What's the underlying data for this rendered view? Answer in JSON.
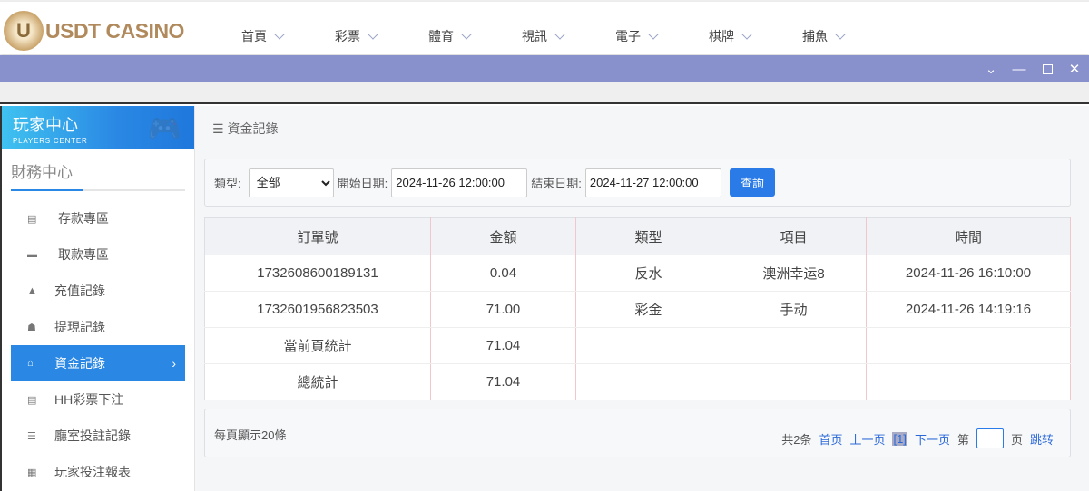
{
  "logo": {
    "text": "USDT CASINO"
  },
  "nav": [
    "首頁",
    "彩票",
    "體育",
    "視訊",
    "電子",
    "棋牌",
    "捕魚"
  ],
  "window": {
    "controls": [
      "chevron-down",
      "minimize",
      "maximize",
      "close"
    ]
  },
  "sidebar": {
    "title": "玩家中心",
    "subtitle": "PLAYERS CENTER",
    "section": "財務中心",
    "items": [
      {
        "label": "存款專區"
      },
      {
        "label": "取款專區"
      },
      {
        "label": "充值記錄"
      },
      {
        "label": "提現記錄"
      },
      {
        "label": "資金記錄",
        "active": true
      },
      {
        "label": "HH彩票下注"
      },
      {
        "label": "廳室投註記錄"
      },
      {
        "label": "玩家投注報表"
      }
    ]
  },
  "breadcrumb": "資金記錄",
  "filter": {
    "type_label": "類型:",
    "type_value": "全部",
    "start_label": "開始日期:",
    "start_value": "2024-11-26 12:00:00",
    "end_label": "結束日期:",
    "end_value": "2024-11-27 12:00:00",
    "query": "查詢"
  },
  "table": {
    "headers": [
      "訂單號",
      "金額",
      "類型",
      "項目",
      "時間"
    ],
    "rows": [
      [
        "1732608600189131",
        "0.04",
        "反水",
        "澳洲幸运8",
        "2024-11-26 16:10:00"
      ],
      [
        "1732601956823503",
        "71.00",
        "彩金",
        "手动",
        "2024-11-26 14:19:16"
      ],
      [
        "當前頁統計",
        "71.04",
        "",
        "",
        ""
      ],
      [
        "總統計",
        "71.04",
        "",
        "",
        ""
      ]
    ]
  },
  "pager": {
    "per_page": "每頁顯示20條",
    "total": "共2条",
    "first": "首页",
    "prev": "上一页",
    "current": "[1]",
    "next": "下一页",
    "page_prefix": "第",
    "page_suffix": "页",
    "go": "跳转"
  },
  "colors": {
    "accent": "#2a88e4",
    "window_bar": "#8891cc"
  }
}
